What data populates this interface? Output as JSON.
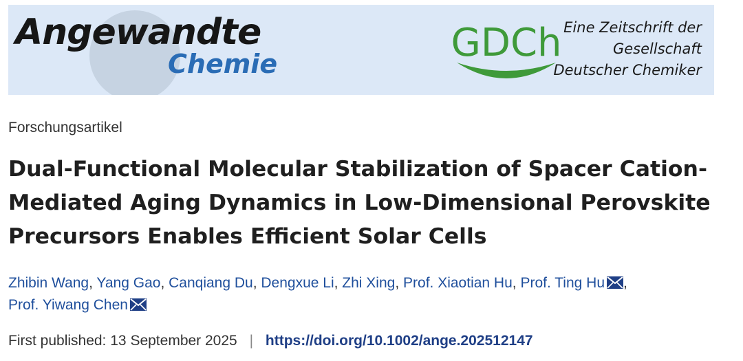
{
  "banner": {
    "journal_line1": "Angewandte",
    "journal_line2": "Chemie",
    "society_logo": "GDCh",
    "tagline": [
      "Eine Zeitschrift der",
      "Gesellschaft",
      "Deutscher Chemiker"
    ],
    "colors": {
      "background": "#dce8f7",
      "journal_blue": "#2a6cb5",
      "gdch_green": "#3f9a3a"
    }
  },
  "article_type": "Forschungsartikel",
  "title_lines": [
    "Dual-Functional Molecular Stabilization of Spacer Cation-",
    "Mediated Aging Dynamics in Low-Dimensional Perovskite",
    "Precursors Enables Efficient Solar Cells"
  ],
  "authors": [
    "Zhibin Wang",
    "Yang Gao",
    "Canqiang Du",
    "Dengxue Li",
    "Zhi Xing",
    "Prof. Xiaotian Hu",
    "Prof. Ting Hu",
    "Prof. Yiwang Chen"
  ],
  "publication": {
    "label": "First published:",
    "date": "13 September 2025",
    "separator": "|",
    "doi": "https://doi.org/10.1002/ange.202512147"
  }
}
